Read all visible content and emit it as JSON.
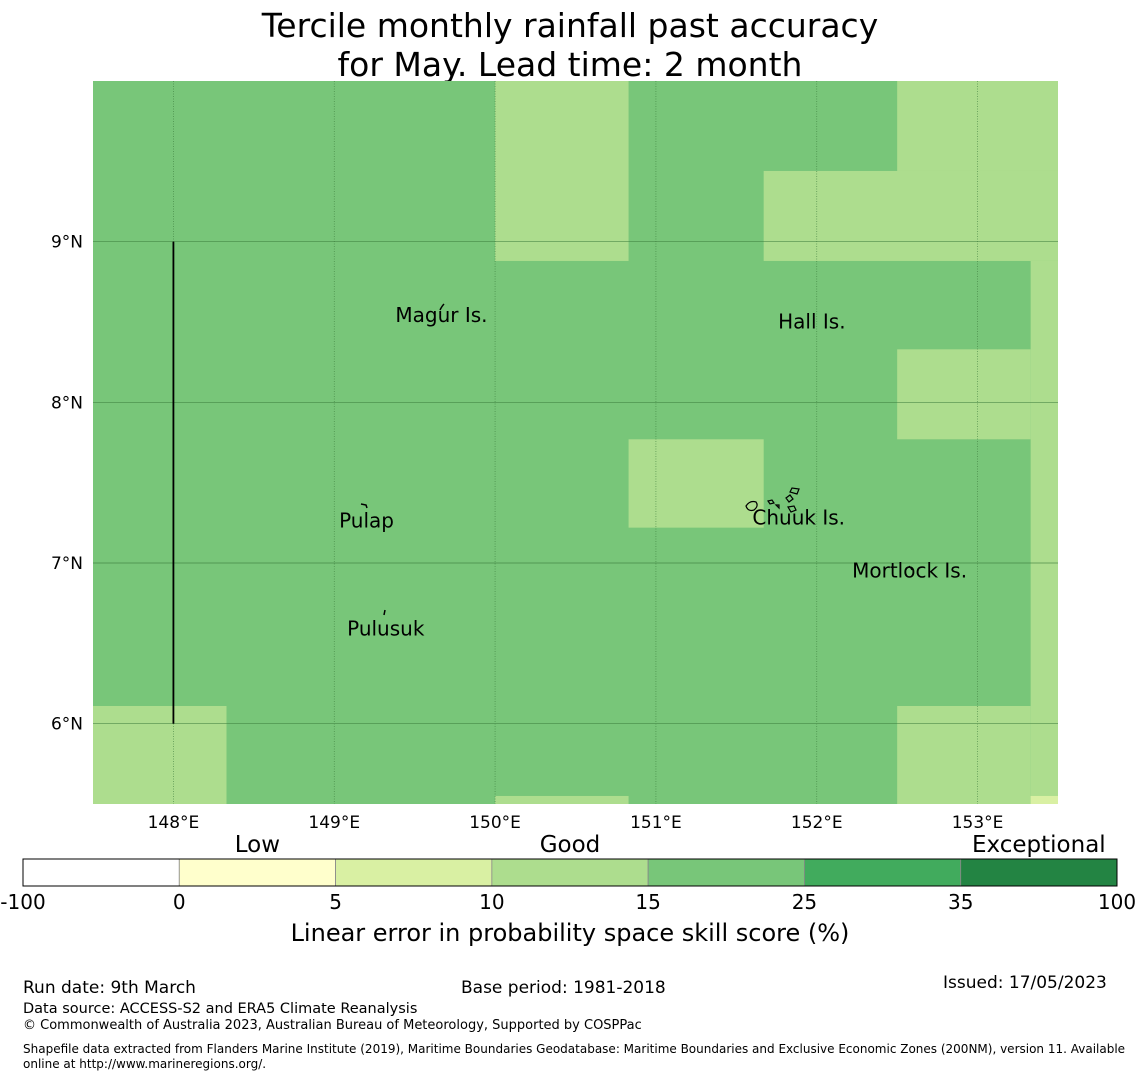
{
  "title": {
    "line1": "Tercile monthly rainfall past accuracy",
    "line2": "for May. Lead time: 2 month"
  },
  "map": {
    "lon_range": [
      147.5,
      153.5
    ],
    "lat_range": [
      5.5,
      10.0
    ],
    "lon_ticks": [
      {
        "value": 148,
        "label": "148°E"
      },
      {
        "value": 149,
        "label": "149°E"
      },
      {
        "value": 150,
        "label": "150°E"
      },
      {
        "value": 151,
        "label": "151°E"
      },
      {
        "value": 152,
        "label": "152°E"
      },
      {
        "value": 153,
        "label": "153°E"
      }
    ],
    "lat_ticks": [
      {
        "value": 9,
        "label": "9°N"
      },
      {
        "value": 8,
        "label": "8°N"
      },
      {
        "value": 7,
        "label": "7°N"
      },
      {
        "value": 6,
        "label": "6°N"
      }
    ],
    "colors": {
      "c15_25": "#78c679",
      "c10_15": "#addd8e",
      "c5_10": "#d9f0a3"
    },
    "cells": [
      {
        "lon0": 147.5,
        "lon1": 153.5,
        "lat0": 5.5,
        "lat1": 10.0,
        "class": "c15_25"
      },
      {
        "lon0": 150.0,
        "lon1": 150.83,
        "lat0": 8.88,
        "lat1": 10.0,
        "class": "c10_15"
      },
      {
        "lon0": 152.5,
        "lon1": 153.5,
        "lat0": 9.44,
        "lat1": 10.0,
        "class": "c10_15"
      },
      {
        "lon0": 151.67,
        "lon1": 153.5,
        "lat0": 8.88,
        "lat1": 9.44,
        "class": "c10_15"
      },
      {
        "lon0": 153.33,
        "lon1": 153.5,
        "lat0": 5.5,
        "lat1": 8.88,
        "class": "c10_15"
      },
      {
        "lon0": 152.5,
        "lon1": 153.33,
        "lat0": 7.77,
        "lat1": 8.33,
        "class": "c10_15"
      },
      {
        "lon0": 150.83,
        "lon1": 151.67,
        "lat0": 7.22,
        "lat1": 7.77,
        "class": "c10_15"
      },
      {
        "lon0": 147.5,
        "lon1": 148.33,
        "lat0": 5.5,
        "lat1": 6.11,
        "class": "c10_15"
      },
      {
        "lon0": 152.5,
        "lon1": 153.33,
        "lat0": 5.5,
        "lat1": 6.11,
        "class": "c10_15"
      },
      {
        "lon0": 150.0,
        "lon1": 150.83,
        "lat0": 5.5,
        "lat1": 5.55,
        "class": "c10_15"
      },
      {
        "lon0": 153.33,
        "lon1": 153.5,
        "lat0": 5.5,
        "lat1": 5.55,
        "class": "c5_10"
      }
    ],
    "boundary_line": {
      "lon": 148.0,
      "lat0": 6.0,
      "lat1": 9.0
    },
    "places": [
      {
        "name": "Magur Is.",
        "lon": 149.38,
        "lat": 8.5
      },
      {
        "name": "Hall Is.",
        "lon": 151.76,
        "lat": 8.46
      },
      {
        "name": "Pulap",
        "lon": 149.03,
        "lat": 7.22
      },
      {
        "name": "Chuuk Is.",
        "lon": 151.6,
        "lat": 7.24
      },
      {
        "name": "Mortlock Is.",
        "lon": 152.22,
        "lat": 6.91
      },
      {
        "name": "Pulusuk",
        "lon": 149.08,
        "lat": 6.55
      }
    ]
  },
  "colorbar": {
    "ticks": [
      "-100",
      "0",
      "5",
      "10",
      "15",
      "25",
      "35",
      "100"
    ],
    "colors": [
      "#ffffff",
      "#ffffcc",
      "#d9f0a3",
      "#addd8e",
      "#78c679",
      "#41ab5d",
      "#238443"
    ],
    "categories": [
      "Low",
      "Good",
      "Exceptional"
    ],
    "label": "Linear error in probability space skill score (%)"
  },
  "footer": {
    "run_date": "Run date: 9th March",
    "base_period": "Base period: 1981-2018",
    "issued": "Issued: 17/05/2023",
    "data_source": "Data source: ACCESS-S2 and ERA5 Climate Reanalysis",
    "copyright": "© Commonwealth of Australia 2023, Australian Bureau of Meteorology, Supported by COSPPac",
    "shapefile": "Shapefile data extracted from Flanders Marine Institute (2019), Maritime Boundaries Geodatabase: Maritime Boundaries and Exclusive Economic Zones (200NM), version 11. Available online at http://www.marineregions.org/."
  }
}
